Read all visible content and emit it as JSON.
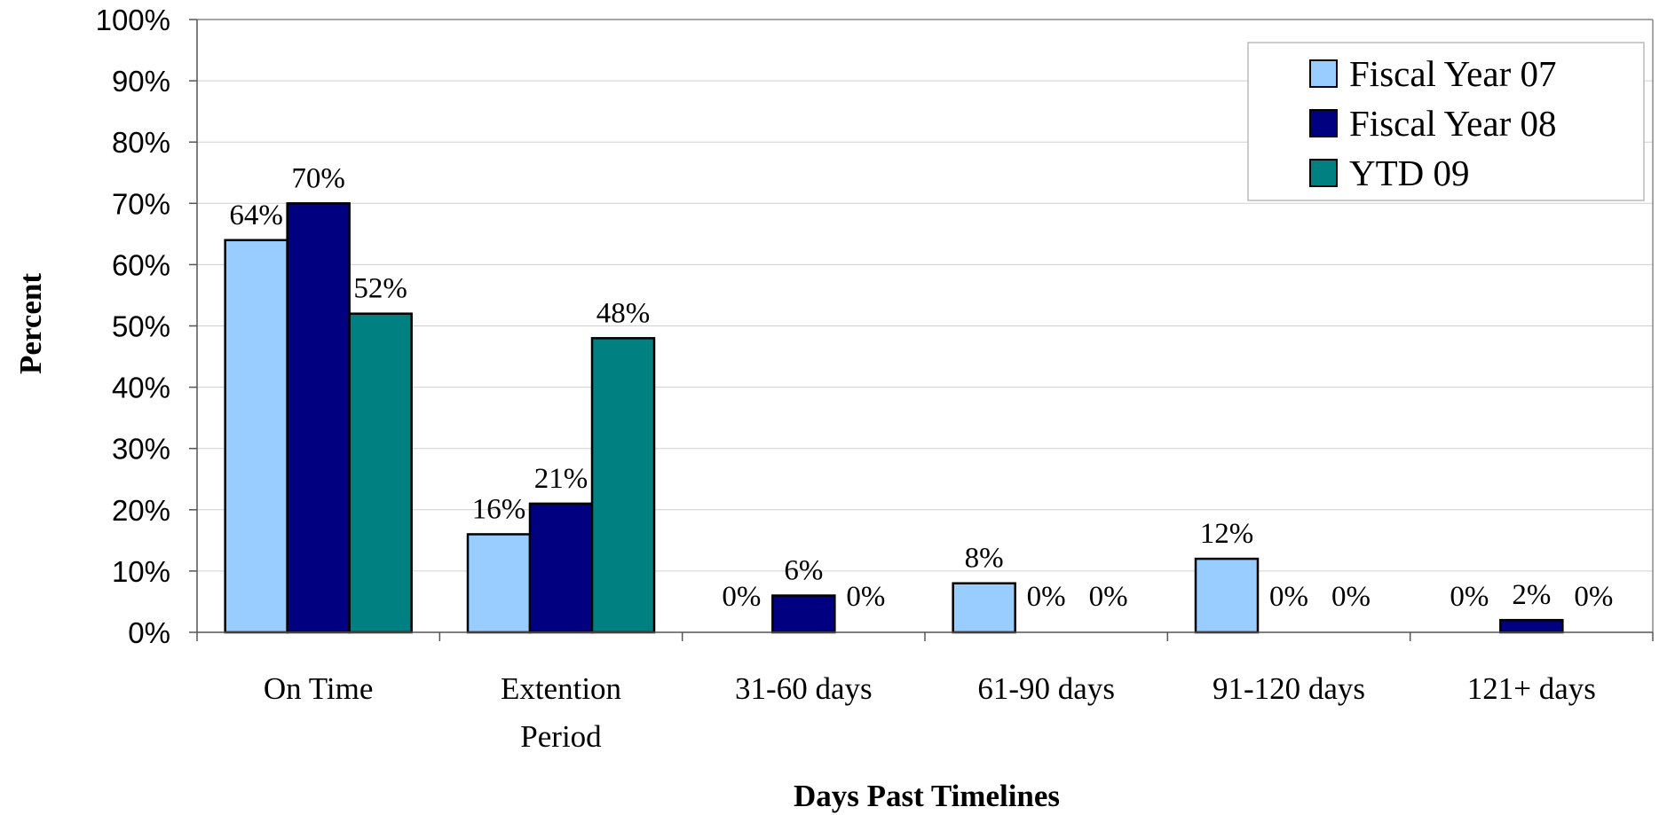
{
  "chart_data": {
    "type": "bar",
    "title": "",
    "xlabel": "Days Past Timelines",
    "ylabel": "Percent",
    "ylim": [
      0,
      100
    ],
    "yticks": [
      0,
      10,
      20,
      30,
      40,
      50,
      60,
      70,
      80,
      90,
      100
    ],
    "ytick_suffix": "%",
    "categories": [
      [
        "On Time"
      ],
      [
        "Extention",
        "Period"
      ],
      [
        "31-60 days"
      ],
      [
        "61-90 days"
      ],
      [
        "91-120 days"
      ],
      [
        "121+ days"
      ]
    ],
    "series": [
      {
        "name": "Fiscal Year 07",
        "color": "#99ccff",
        "values": [
          64,
          16,
          0,
          8,
          12,
          0
        ]
      },
      {
        "name": "Fiscal Year 08",
        "color": "#000080",
        "values": [
          70,
          21,
          6,
          0,
          0,
          2
        ]
      },
      {
        "name": "YTD 09",
        "color": "#008080",
        "values": [
          52,
          48,
          0,
          0,
          0,
          0
        ]
      }
    ],
    "data_labels": [
      [
        "64%",
        "16%",
        "0%",
        "8%",
        "12%",
        "0%"
      ],
      [
        "70%",
        "21%",
        "6%",
        "0%",
        "0%",
        "2%"
      ],
      [
        "52%",
        "48%",
        "0%",
        "0%",
        "0%",
        "0%"
      ]
    ],
    "grid": true,
    "legend_position": "top-right"
  }
}
